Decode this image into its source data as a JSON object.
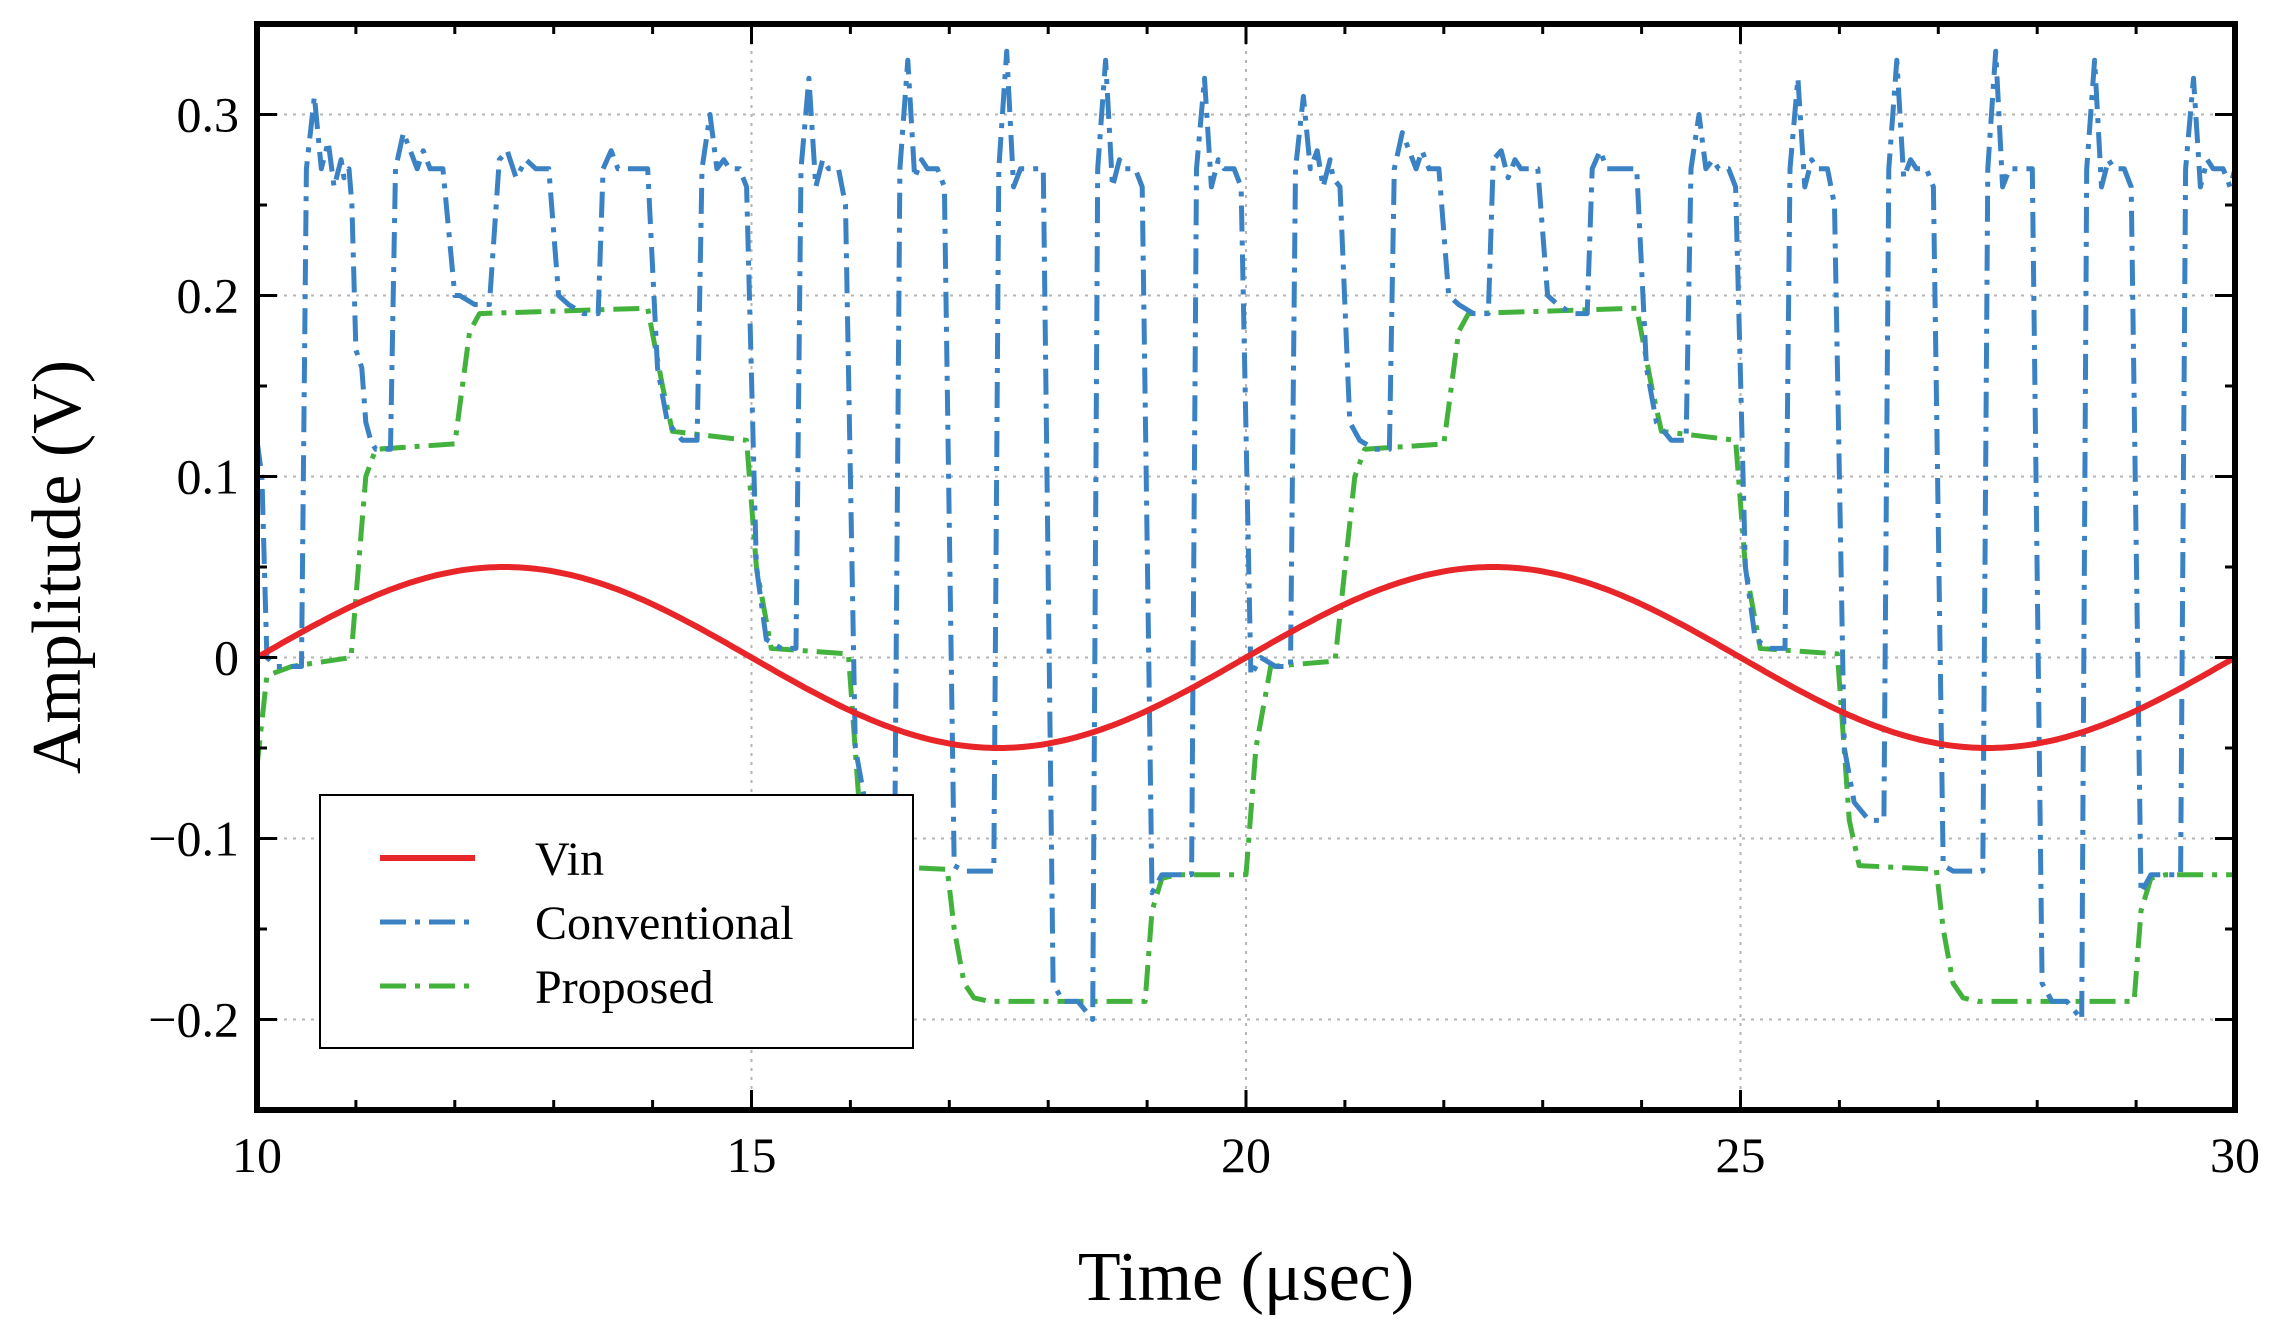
{
  "chart_data": {
    "type": "line",
    "title": "",
    "xlabel": "Time (μsec)",
    "ylabel": "Amplitude (V)",
    "xlim": [
      10,
      30
    ],
    "ylim": [
      -0.25,
      0.35
    ],
    "xticks": [
      10,
      15,
      20,
      25,
      30
    ],
    "xtick_labels": [
      "10",
      "15",
      "20",
      "25",
      "30"
    ],
    "yticks": [
      -0.2,
      -0.1,
      0,
      0.1,
      0.2,
      0.3
    ],
    "ytick_labels": [
      "−0.2",
      "−0.1",
      "0",
      "0.1",
      "0.2",
      "0.3"
    ],
    "grid": true,
    "legend_position": "lower-left",
    "colors": {
      "vin": "#e8262a",
      "conventional": "#3a82c4",
      "proposed": "#43b23c"
    },
    "series": [
      {
        "name": "Vin",
        "style": "solid",
        "function": "0.05*sin(2*pi*(t-10)/10)",
        "x": [
          10,
          11,
          12,
          12.5,
          13,
          14,
          15,
          16,
          17,
          17.5,
          18,
          19,
          20,
          21,
          22,
          22.5,
          23,
          24,
          25,
          26,
          27,
          27.5,
          28,
          29,
          30
        ],
        "values": [
          0,
          0.0294,
          0.0476,
          0.05,
          0.0476,
          0.0294,
          0,
          -0.0294,
          -0.0476,
          -0.05,
          -0.0476,
          -0.0294,
          0,
          0.0294,
          0.0476,
          0.05,
          0.0476,
          0.0294,
          0,
          -0.0294,
          -0.0476,
          -0.05,
          -0.0476,
          -0.0294,
          0
        ]
      },
      {
        "name": "Proposed",
        "style": "dash-dot",
        "x": [
          10,
          10.1,
          10.35,
          10.95,
          11.1,
          11.2,
          12.0,
          12.15,
          12.25,
          13.95,
          14.1,
          14.2,
          14.95,
          15.05,
          15.2,
          15.98,
          16.1,
          16.2,
          16.98,
          17.05,
          17.15,
          17.25,
          17.4,
          18.98,
          19.05,
          19.15,
          19.3,
          20.0,
          20.1,
          20.25,
          20.9,
          21.1,
          21.2,
          22.0,
          22.15,
          22.25,
          23.95,
          24.1,
          24.2,
          24.95,
          25.05,
          25.2,
          25.98,
          26.1,
          26.2,
          26.98,
          27.05,
          27.15,
          27.25,
          27.4,
          28.98,
          29.05,
          29.15,
          29.3,
          30.0
        ],
        "values": [
          -0.06,
          -0.01,
          -0.005,
          0,
          0.1,
          0.115,
          0.118,
          0.18,
          0.19,
          0.193,
          0.15,
          0.125,
          0.12,
          0.05,
          0.005,
          0.002,
          -0.09,
          -0.115,
          -0.117,
          -0.15,
          -0.18,
          -0.188,
          -0.19,
          -0.19,
          -0.14,
          -0.122,
          -0.12,
          -0.12,
          -0.05,
          -0.005,
          -0.002,
          0.1,
          0.115,
          0.118,
          0.18,
          0.19,
          0.193,
          0.15,
          0.125,
          0.12,
          0.05,
          0.005,
          0.002,
          -0.09,
          -0.115,
          -0.117,
          -0.15,
          -0.18,
          -0.188,
          -0.19,
          -0.19,
          -0.14,
          -0.122,
          -0.12,
          -0.12
        ]
      },
      {
        "name": "Conventional",
        "style": "dash-dot",
        "x": [
          10.0,
          10.05,
          10.1,
          10.2,
          10.45,
          10.5,
          10.58,
          10.65,
          10.72,
          10.78,
          10.85,
          10.88,
          10.93,
          10.96,
          11.0,
          11.06,
          11.1,
          11.15,
          11.2,
          11.35,
          11.4,
          11.48,
          11.55,
          11.62,
          11.68,
          11.75,
          11.82,
          11.88,
          12.0,
          12.05,
          12.2,
          12.35,
          12.45,
          12.53,
          12.62,
          12.72,
          12.82,
          12.88,
          12.95,
          13.05,
          13.15,
          13.3,
          13.45,
          13.5,
          13.58,
          13.65,
          13.72,
          13.78,
          13.85,
          13.88,
          13.95,
          14.05,
          14.15,
          14.3,
          14.45,
          14.5,
          14.58,
          14.65,
          14.72,
          14.78,
          14.85,
          14.88,
          14.95,
          15.05,
          15.15,
          15.3,
          15.45,
          15.5,
          15.58,
          15.65,
          15.72,
          15.78,
          15.85,
          15.88,
          15.95,
          16.05,
          16.15,
          16.3,
          16.45,
          16.5,
          16.58,
          16.65,
          16.72,
          16.78,
          16.85,
          16.88,
          16.95,
          17.05,
          17.15,
          17.3,
          17.45,
          17.5,
          17.58,
          17.65,
          17.72,
          17.78,
          17.85,
          17.88,
          17.95,
          18.05,
          18.15,
          18.3,
          18.45,
          18.5,
          18.58,
          18.65,
          18.72,
          18.78,
          18.85,
          18.88,
          18.95,
          19.05,
          19.15,
          19.3,
          19.45,
          19.5,
          19.58,
          19.65,
          19.72,
          19.78,
          19.85,
          19.88,
          19.95,
          20.05,
          20.15,
          20.3,
          20.45,
          20.5,
          20.58,
          20.65,
          20.72,
          20.78,
          20.85,
          20.88,
          20.95,
          21.05,
          21.15,
          21.3,
          21.45,
          21.5,
          21.58,
          21.65,
          21.72,
          21.78,
          21.85,
          21.88,
          21.95,
          22.05,
          22.15,
          22.3,
          22.45,
          22.5,
          22.58,
          22.65,
          22.72,
          22.78,
          22.85,
          22.88,
          22.95,
          23.05,
          23.15,
          23.3,
          23.45,
          23.5,
          23.58,
          23.65,
          23.72,
          23.78,
          23.85,
          23.88,
          23.95,
          24.05,
          24.15,
          24.3,
          24.45,
          24.5,
          24.58,
          24.65,
          24.72,
          24.78,
          24.85,
          24.88,
          24.95,
          25.05,
          25.15,
          25.3,
          25.45,
          25.5,
          25.58,
          25.65,
          25.72,
          25.78,
          25.85,
          25.88,
          25.95,
          26.05,
          26.15,
          26.3,
          26.45,
          26.5,
          26.58,
          26.65,
          26.72,
          26.78,
          26.85,
          26.88,
          26.95,
          27.05,
          27.15,
          27.3,
          27.45,
          27.5,
          27.58,
          27.65,
          27.72,
          27.78,
          27.85,
          27.88,
          27.95,
          28.05,
          28.15,
          28.3,
          28.45,
          28.5,
          28.58,
          28.65,
          28.72,
          28.78,
          28.85,
          28.88,
          28.95,
          29.05,
          29.15,
          29.3,
          29.45,
          29.5,
          29.58,
          29.65,
          29.72,
          29.78,
          29.85,
          29.88,
          29.95,
          30.0
        ],
        "values": [
          0.12,
          0.1,
          0.0,
          -0.005,
          -0.005,
          0.27,
          0.31,
          0.27,
          0.285,
          0.26,
          0.275,
          0.265,
          0.27,
          0.25,
          0.17,
          0.16,
          0.13,
          0.12,
          0.115,
          0.115,
          0.27,
          0.29,
          0.28,
          0.27,
          0.28,
          0.27,
          0.27,
          0.27,
          0.2,
          0.2,
          0.195,
          0.195,
          0.275,
          0.28,
          0.265,
          0.275,
          0.27,
          0.27,
          0.27,
          0.2,
          0.195,
          0.19,
          0.19,
          0.27,
          0.28,
          0.27,
          0.27,
          0.27,
          0.27,
          0.27,
          0.27,
          0.16,
          0.13,
          0.12,
          0.12,
          0.27,
          0.3,
          0.27,
          0.275,
          0.27,
          0.27,
          0.27,
          0.26,
          0.05,
          0.01,
          0.005,
          0.005,
          0.27,
          0.32,
          0.26,
          0.275,
          0.27,
          0.27,
          0.27,
          0.25,
          -0.05,
          -0.08,
          -0.09,
          -0.09,
          0.27,
          0.33,
          0.265,
          0.275,
          0.27,
          0.27,
          0.27,
          0.26,
          -0.115,
          -0.118,
          -0.118,
          -0.118,
          0.27,
          0.335,
          0.26,
          0.27,
          0.27,
          0.27,
          0.27,
          0.27,
          -0.18,
          -0.19,
          -0.19,
          -0.2,
          0.27,
          0.33,
          0.26,
          0.275,
          0.27,
          0.27,
          0.27,
          0.26,
          -0.13,
          -0.12,
          -0.12,
          -0.12,
          0.27,
          0.32,
          0.26,
          0.275,
          0.27,
          0.27,
          0.27,
          0.26,
          -0.01,
          0.0,
          -0.005,
          -0.005,
          0.27,
          0.31,
          0.27,
          0.28,
          0.26,
          0.275,
          0.265,
          0.26,
          0.13,
          0.12,
          0.115,
          0.115,
          0.27,
          0.29,
          0.28,
          0.27,
          0.28,
          0.27,
          0.27,
          0.27,
          0.2,
          0.195,
          0.19,
          0.19,
          0.275,
          0.28,
          0.265,
          0.275,
          0.27,
          0.27,
          0.27,
          0.27,
          0.2,
          0.195,
          0.19,
          0.19,
          0.27,
          0.28,
          0.27,
          0.27,
          0.27,
          0.27,
          0.27,
          0.27,
          0.16,
          0.13,
          0.12,
          0.12,
          0.27,
          0.3,
          0.27,
          0.275,
          0.27,
          0.27,
          0.27,
          0.26,
          0.05,
          0.01,
          0.005,
          0.005,
          0.27,
          0.32,
          0.26,
          0.275,
          0.27,
          0.27,
          0.27,
          0.25,
          -0.05,
          -0.08,
          -0.09,
          -0.09,
          0.27,
          0.33,
          0.265,
          0.275,
          0.27,
          0.27,
          0.27,
          0.26,
          -0.115,
          -0.118,
          -0.118,
          -0.118,
          0.27,
          0.335,
          0.26,
          0.27,
          0.27,
          0.27,
          0.27,
          0.27,
          -0.18,
          -0.19,
          -0.19,
          -0.2,
          0.27,
          0.33,
          0.26,
          0.275,
          0.27,
          0.27,
          0.27,
          0.26,
          -0.13,
          -0.12,
          -0.12,
          -0.12,
          0.27,
          0.32,
          0.26,
          0.275,
          0.27,
          0.27,
          0.27,
          0.26,
          0.27
        ]
      }
    ],
    "legend": [
      "Vin",
      "Conventional",
      "Proposed"
    ]
  }
}
